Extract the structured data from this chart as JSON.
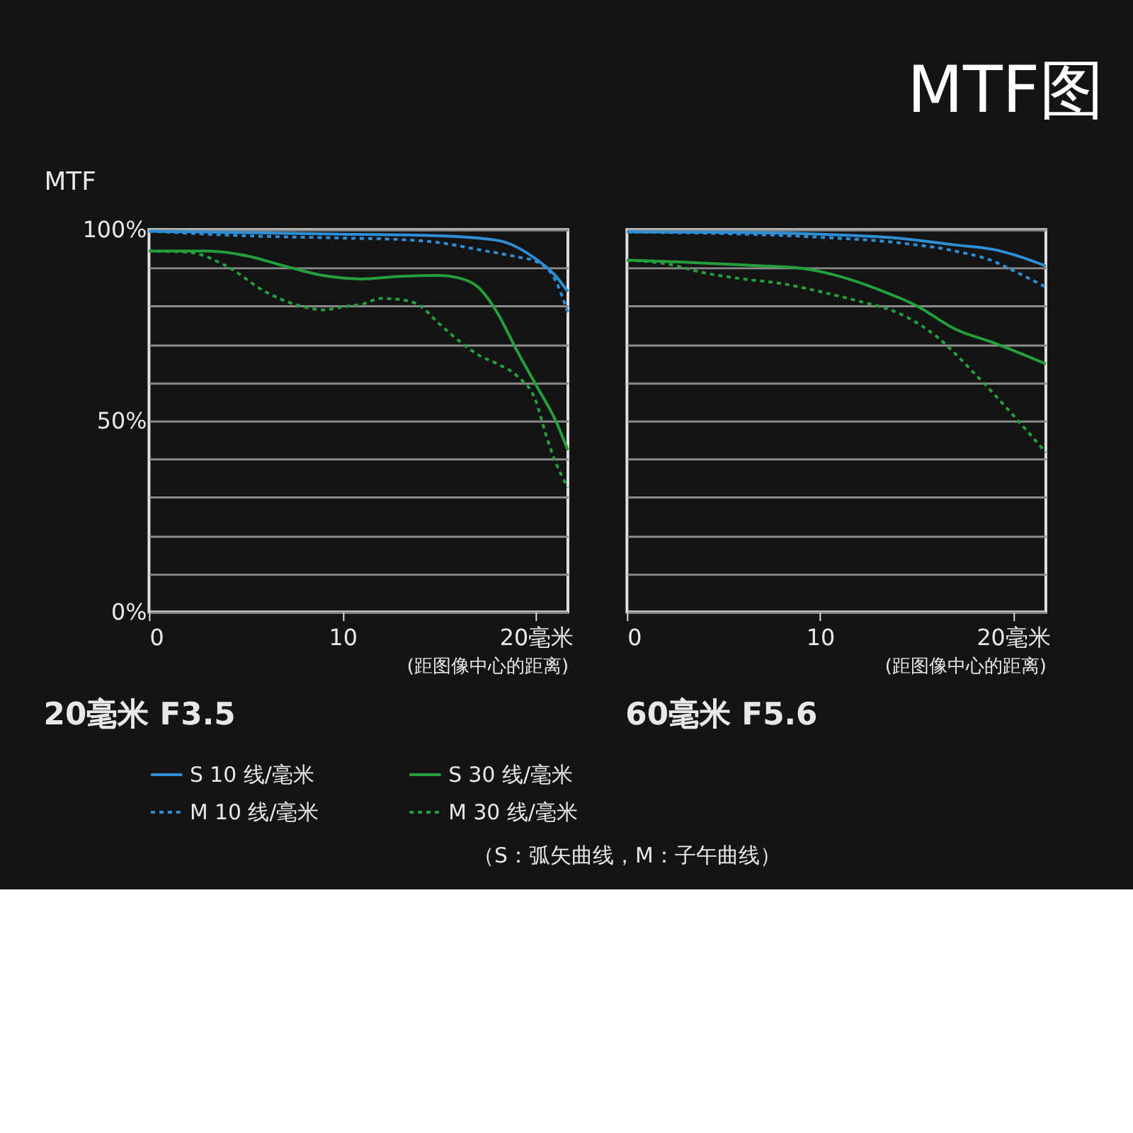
{
  "chart_data": [
    {
      "type": "other",
      "title": "MTF图",
      "annotations": [
        "（S：弧矢曲线，M：子午曲线）"
      ]
    },
    {
      "type": "line",
      "title": "20毫米 F3.5",
      "xlabel": "(距图像中心的距离)",
      "ylabel": "MTF",
      "xlim": [
        0,
        21.65
      ],
      "xticks": [
        0,
        10,
        {
          "value": 20,
          "label": "20毫米"
        }
      ],
      "ylim": [
        0,
        100
      ],
      "yticks": [
        {
          "value": 0,
          "label": "0%"
        },
        {
          "value": 10,
          "label": null
        },
        {
          "value": 20,
          "label": null
        },
        {
          "value": 30,
          "label": null
        },
        {
          "value": 40,
          "label": null
        },
        {
          "value": 50,
          "label": "50%"
        },
        {
          "value": 60,
          "label": null
        },
        {
          "value": 70,
          "label": null
        },
        {
          "value": 80,
          "label": null
        },
        {
          "value": 90,
          "label": null
        },
        {
          "value": 100,
          "label": "100%"
        }
      ],
      "grid": "y",
      "legend": "bottom",
      "series": [
        {
          "name": "S 10 线/毫米",
          "color": "#2e8fd6",
          "line_style": "solid",
          "x": [
            0,
            10,
            15,
            18,
            20,
            21,
            21.65
          ],
          "values": [
            99.6,
            98.8,
            98.4,
            97.2,
            92.3,
            88,
            83.8
          ]
        },
        {
          "name": "M 10 线/毫米",
          "color": "#2e8fd6",
          "line_style": "dashed",
          "x": [
            0,
            5,
            10,
            13,
            15,
            17,
            19,
            20,
            21,
            21.65
          ],
          "values": [
            99.6,
            98.4,
            97.8,
            97.4,
            96.6,
            94.8,
            92.9,
            91.7,
            86.8,
            78.3
          ]
        },
        {
          "name": "S 30 线/毫米",
          "color": "#23a03c",
          "line_style": "solid",
          "x": [
            0,
            3,
            5,
            7,
            9,
            11,
            13,
            15,
            16,
            17,
            18,
            19,
            20,
            21,
            21.65
          ],
          "values": [
            94.4,
            94.4,
            93.2,
            90.5,
            88,
            87.1,
            87.8,
            88,
            87.4,
            85,
            78.3,
            68.5,
            59.4,
            50.2,
            42.3
          ]
        },
        {
          "name": "M 30 线/毫米",
          "color": "#23a03c",
          "line_style": "dashed",
          "x": [
            0,
            2,
            4,
            6,
            8,
            9,
            10,
            11,
            12,
            13,
            14,
            15,
            16,
            17,
            18,
            19,
            20,
            20.5,
            21,
            21.65
          ],
          "values": [
            94.4,
            94.1,
            90.5,
            83.8,
            79.8,
            79,
            79.8,
            80.5,
            82,
            81.7,
            80.1,
            75.4,
            71,
            67.3,
            64.9,
            61.8,
            55.1,
            46.6,
            39.3,
            32.6
          ]
        }
      ]
    },
    {
      "type": "line",
      "title": "60毫米 F5.6",
      "xlabel": "(距图像中心的距离)",
      "xlim": [
        0,
        21.7
      ],
      "xticks": [
        0,
        10,
        {
          "value": 20,
          "label": "20毫米"
        }
      ],
      "ylim": [
        0,
        100
      ],
      "yticks": [
        {
          "value": 0,
          "label": null
        },
        {
          "value": 10,
          "label": null
        },
        {
          "value": 20,
          "label": null
        },
        {
          "value": 30,
          "label": null
        },
        {
          "value": 40,
          "label": null
        },
        {
          "value": 50,
          "label": null
        },
        {
          "value": 60,
          "label": null
        },
        {
          "value": 70,
          "label": null
        },
        {
          "value": 80,
          "label": null
        },
        {
          "value": 90,
          "label": null
        },
        {
          "value": 100,
          "label": null
        }
      ],
      "grid": "y",
      "legend": "bottom",
      "tick_labels": "x",
      "series": [
        {
          "name": "S 10 线/毫米",
          "color": "#2e8fd6",
          "line_style": "solid",
          "x": [
            0,
            5,
            10,
            14,
            17,
            19,
            20,
            21.7
          ],
          "values": [
            99.4,
            99.3,
            98.8,
            97.8,
            96,
            94.8,
            93.5,
            90.5
          ]
        },
        {
          "name": "M 10 线/毫米",
          "color": "#2e8fd6",
          "line_style": "dashed",
          "x": [
            0,
            10,
            14,
            17,
            19,
            20,
            21.7
          ],
          "values": [
            99.4,
            98,
            96.6,
            94.4,
            91.7,
            89.3,
            85
          ]
        },
        {
          "name": "S 30 线/毫米",
          "color": "#23a03c",
          "line_style": "solid",
          "x": [
            0,
            3,
            7,
            9,
            11,
            13,
            15,
            17,
            19,
            21.7
          ],
          "values": [
            92,
            91.5,
            90.5,
            89.9,
            87.8,
            84.4,
            80.1,
            74,
            70.4,
            64.9
          ]
        },
        {
          "name": "M 30 线/毫米",
          "color": "#23a03c",
          "line_style": "dashed",
          "x": [
            0,
            2,
            4,
            6,
            8,
            10,
            12,
            14,
            16,
            18,
            20,
            21.7
          ],
          "values": [
            92,
            91.1,
            88.7,
            87.1,
            85.9,
            83.8,
            81.3,
            78.3,
            72.2,
            62.4,
            51.5,
            41.7
          ]
        }
      ]
    }
  ]
}
